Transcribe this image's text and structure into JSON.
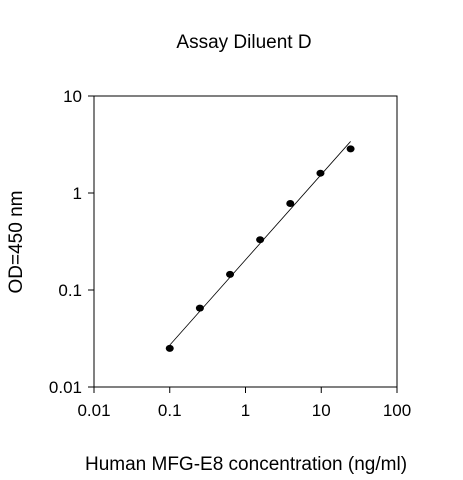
{
  "chart_data": {
    "type": "scatter",
    "title": "Assay Diluent D",
    "xlabel": "Human MFG-E8 concentration (ng/ml)",
    "ylabel": "OD=450 nm",
    "xscale": "log",
    "yscale": "log",
    "xlim": [
      0.01,
      100
    ],
    "ylim": [
      0.01,
      10
    ],
    "x_ticks": [
      0.01,
      0.1,
      1,
      10,
      100
    ],
    "x_tick_labels": [
      "0.01",
      "0.1",
      "1",
      "10",
      "100"
    ],
    "y_ticks": [
      0.01,
      0.1,
      1,
      10
    ],
    "y_tick_labels": [
      "0.01",
      "0.1",
      "1",
      "10"
    ],
    "grid": false,
    "series": [
      {
        "points": [
          {
            "x": 0.1,
            "y": 0.025
          },
          {
            "x": 0.25,
            "y": 0.065
          },
          {
            "x": 0.625,
            "y": 0.145
          },
          {
            "x": 1.56,
            "y": 0.33
          },
          {
            "x": 3.9,
            "y": 0.78
          },
          {
            "x": 9.76,
            "y": 1.6
          },
          {
            "x": 24.4,
            "y": 2.85
          }
        ]
      }
    ],
    "fit_line": [
      {
        "x": 0.1,
        "y": 0.027
      },
      {
        "x": 24.4,
        "y": 3.4
      }
    ],
    "colors": {
      "marker": "#000000",
      "line": "#000000",
      "axis": "#000000"
    }
  }
}
